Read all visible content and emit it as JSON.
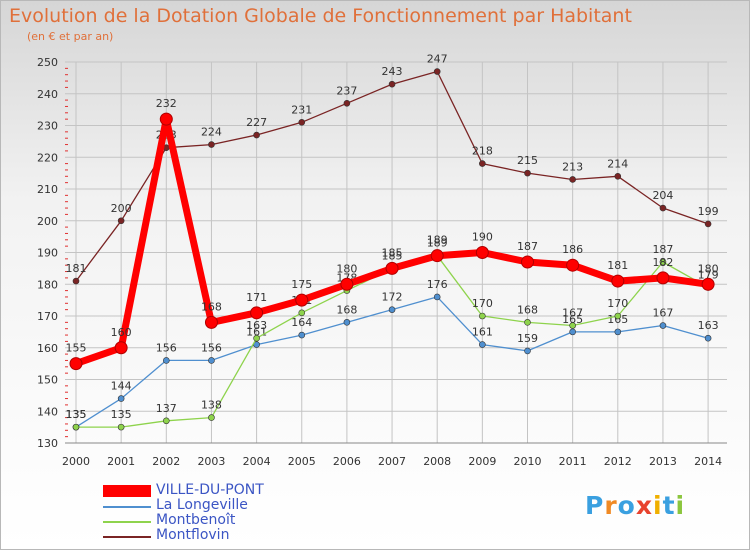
{
  "chart_data": {
    "type": "line",
    "title": "Evolution de la Dotation Globale de Fonctionnement par Habitant",
    "subtitle": "(en € et par an)",
    "xlabel": "",
    "ylabel": "",
    "categories": [
      "2000",
      "2001",
      "2002",
      "2003",
      "2004",
      "2005",
      "2006",
      "2007",
      "2008",
      "2009",
      "2010",
      "2011",
      "2012",
      "2013",
      "2014"
    ],
    "ylim": [
      130,
      250
    ],
    "yticks": [
      130,
      140,
      150,
      160,
      170,
      180,
      190,
      200,
      210,
      220,
      230,
      240,
      250
    ],
    "grid": true,
    "series": [
      {
        "name": "Montflovin",
        "color": "#7a2424",
        "values": [
          181,
          200,
          223,
          224,
          227,
          231,
          237,
          243,
          247,
          218,
          215,
          213,
          214,
          204,
          199
        ]
      },
      {
        "name": "La Longeville",
        "color": "#4f8fcf",
        "values": [
          135,
          144,
          156,
          156,
          161,
          164,
          168,
          172,
          176,
          161,
          159,
          165,
          165,
          167,
          163
        ]
      },
      {
        "name": "Montbenoît",
        "color": "#8ed34c",
        "values": [
          135,
          135,
          137,
          138,
          163,
          171,
          178,
          185,
          189,
          170,
          168,
          167,
          170,
          187,
          179
        ]
      },
      {
        "name": "VILLE-DU-PONT",
        "color": "#ff0000",
        "values": [
          155,
          160,
          232,
          168,
          171,
          175,
          180,
          185,
          189,
          190,
          187,
          186,
          181,
          182,
          180
        ]
      }
    ]
  },
  "legend": {
    "items": [
      {
        "label": "VILLE-DU-PONT",
        "color": "#ff0000"
      },
      {
        "label": "La Longeville",
        "color": "#4f8fcf"
      },
      {
        "label": "Montbenoît",
        "color": "#8ed34c"
      },
      {
        "label": "Montflovin",
        "color": "#7a2424"
      }
    ]
  },
  "logo": {
    "letters": [
      "P",
      "r",
      "o",
      "x",
      "i",
      "t",
      "i"
    ],
    "colors": [
      "#3aa0e0",
      "#f08a24",
      "#3aa0e0",
      "#e8432e",
      "#f0b000",
      "#3aa0e0",
      "#8cc63e"
    ]
  }
}
